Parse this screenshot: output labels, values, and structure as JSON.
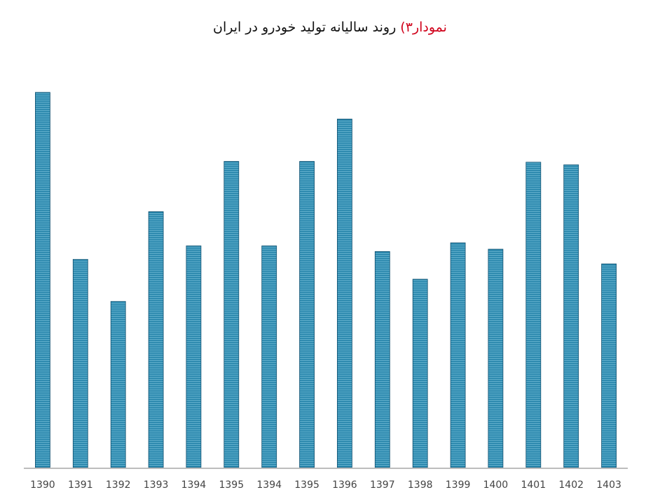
{
  "chart_data": {
    "type": "bar",
    "title_prefix": "نمودار۳)",
    "title": "روند سالیانه تولید خودرو در ایران",
    "xlabel": "",
    "ylabel": "",
    "categories": [
      "1390",
      "1391",
      "1392",
      "1393",
      "1394",
      "1395",
      "1394",
      "1395",
      "1396",
      "1397",
      "1398",
      "1399",
      "1400",
      "1401",
      "1402",
      "1403"
    ],
    "values": [
      100,
      55.5,
      44.3,
      68.2,
      59.1,
      81.6,
      59.1,
      81.6,
      92.9,
      57.6,
      50.2,
      59.9,
      58.2,
      81.4,
      80.7,
      54.3
    ],
    "ylim": [
      0,
      100
    ],
    "grid": false,
    "legend": "none",
    "colors": {
      "bar_fill": "#1f7fa6",
      "bar_stripe": "#7fc6df",
      "bar_edge": "#0f4f6f",
      "axis": "#bdbdbd",
      "title_prefix": "#d0021b"
    }
  }
}
